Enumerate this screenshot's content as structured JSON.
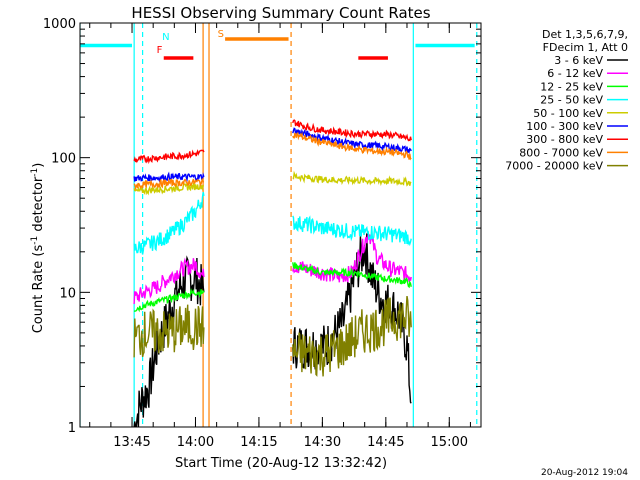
{
  "chart_data": {
    "type": "line",
    "title": "HESSI Observing Summary Count Rates",
    "xlabel": "Start Time (20-Aug-12 13:32:42)",
    "ylabel_main": "Count Rate (s",
    "ylabel_sup1": "-1",
    "ylabel_mid": " detector",
    "ylabel_sup2": "-1",
    "ylabel_end": ")",
    "y_scale": "log",
    "ylim": [
      1,
      1000
    ],
    "xlim_minutes": [
      13.5,
      36.5
    ],
    "xlim_minutes_note": "",
    "y_ticks": [
      {
        "value": 1,
        "label": "1"
      },
      {
        "value": 10,
        "label": "10"
      },
      {
        "value": 100,
        "label": "100"
      },
      {
        "value": 1000,
        "label": "1000"
      }
    ],
    "x_ticks": [
      {
        "time": "13:45",
        "label": "13:45"
      },
      {
        "time": "14:00",
        "label": "14:00"
      },
      {
        "time": "14:15",
        "label": "14:15"
      },
      {
        "time": "14:30",
        "label": "14:30"
      },
      {
        "time": "14:45",
        "label": "14:45"
      },
      {
        "time": "15:00",
        "label": "15:00"
      }
    ],
    "legend_header": [
      "Det 1,3,5,6,7,9,",
      "FDecim 1, Att 0"
    ],
    "legend_position": "right",
    "series": [
      {
        "name": "3 - 6 keV",
        "color": "#000000",
        "segments": [
          {
            "x": [
              "13:45.5",
              "13:47",
              "13:49",
              "13:51",
              "13:53",
              "13:55",
              "13:57",
              "14:00",
              "14:02"
            ],
            "y": [
              1,
              1.5,
              2,
              4,
              6,
              9,
              12,
              13,
              10
            ]
          },
          {
            "x": [
              "14:23",
              "14:27",
              "14:31",
              "14:35",
              "14:37",
              "14:38",
              "14:40",
              "14:42",
              "14:44",
              "14:46",
              "14:48",
              "14:50",
              "14:51"
            ],
            "y": [
              4,
              4,
              4,
              6,
              11,
              14,
              22,
              12,
              9,
              8,
              7,
              4,
              1.5
            ]
          }
        ]
      },
      {
        "name": "6 - 12 keV",
        "color": "#ff00ff",
        "segments": [
          {
            "x": [
              "13:45.5",
              "13:48",
              "13:51",
              "13:54",
              "13:57",
              "14:00",
              "14:02"
            ],
            "y": [
              9,
              10,
              11,
              13,
              15,
              16,
              13
            ]
          },
          {
            "x": [
              "14:23",
              "14:26",
              "14:30",
              "14:34",
              "14:37",
              "14:39",
              "14:41",
              "14:43",
              "14:46",
              "14:49",
              "14:51"
            ],
            "y": [
              16,
              15,
              14,
              13,
              14,
              20,
              28,
              18,
              15,
              14,
              13
            ]
          }
        ]
      },
      {
        "name": "12 - 25 keV",
        "color": "#00ff00",
        "segments": [
          {
            "x": [
              "13:45.5",
              "13:48",
              "13:51",
              "13:54",
              "13:57",
              "14:00",
              "14:02"
            ],
            "y": [
              7.5,
              8,
              8.5,
              9,
              9.5,
              10,
              10
            ]
          },
          {
            "x": [
              "14:23",
              "14:26",
              "14:30",
              "14:34",
              "14:38",
              "14:42",
              "14:46",
              "14:50",
              "14:51"
            ],
            "y": [
              16,
              15,
              14,
              14,
              14,
              13,
              12.5,
              12,
              11
            ]
          }
        ]
      },
      {
        "name": "25 - 50 keV",
        "color": "#00ffff",
        "segments": [
          {
            "x": [
              "13:45.5",
              "13:48",
              "13:51",
              "13:54",
              "13:57",
              "14:00",
              "14:02"
            ],
            "y": [
              21,
              22,
              24,
              27,
              32,
              40,
              52
            ]
          },
          {
            "x": [
              "14:23",
              "14:26",
              "14:30",
              "14:34",
              "14:38",
              "14:42",
              "14:46",
              "14:50",
              "14:51"
            ],
            "y": [
              33,
              32,
              30,
              29,
              28,
              28,
              27,
              26,
              25
            ]
          }
        ]
      },
      {
        "name": "50 - 100 keV",
        "color": "#cccc00",
        "segments": [
          {
            "x": [
              "13:45.5",
              "13:48",
              "13:51",
              "13:54",
              "13:57",
              "14:00",
              "14:02"
            ],
            "y": [
              56,
              57,
              58,
              59,
              60,
              61,
              62
            ]
          },
          {
            "x": [
              "14:23",
              "14:26",
              "14:30",
              "14:34",
              "14:38",
              "14:42",
              "14:46",
              "14:50",
              "14:51"
            ],
            "y": [
              73,
              71,
              69,
              68,
              68,
              67,
              67,
              66,
              65
            ]
          }
        ]
      },
      {
        "name": "100 - 300 keV",
        "color": "#0000ff",
        "segments": [
          {
            "x": [
              "13:45.5",
              "13:48",
              "13:51",
              "13:54",
              "13:57",
              "14:00",
              "14:02"
            ],
            "y": [
              70,
              71,
              71,
              72,
              72,
              72,
              72
            ]
          },
          {
            "x": [
              "14:23",
              "14:26",
              "14:30",
              "14:34",
              "14:38",
              "14:42",
              "14:46",
              "14:50",
              "14:51"
            ],
            "y": [
              160,
              150,
              140,
              132,
              125,
              123,
              120,
              115,
              112
            ]
          }
        ]
      },
      {
        "name": "300 - 800 keV",
        "color": "#ff0000",
        "segments": [
          {
            "x": [
              "13:45.5",
              "13:48",
              "13:51",
              "13:54",
              "13:57",
              "14:00",
              "14:02"
            ],
            "y": [
              96,
              98,
              100,
              102,
              104,
              107,
              110
            ]
          },
          {
            "x": [
              "14:23",
              "14:26",
              "14:30",
              "14:34",
              "14:38",
              "14:42",
              "14:46",
              "14:50",
              "14:51"
            ],
            "y": [
              185,
              170,
              160,
              155,
              150,
              150,
              148,
              140,
              135
            ]
          }
        ]
      },
      {
        "name": "800 - 7000 keV",
        "color": "#ff8000",
        "segments": [
          {
            "x": [
              "13:45.5",
              "13:48",
              "13:51",
              "13:54",
              "13:57",
              "14:00",
              "14:02"
            ],
            "y": [
              62,
              63,
              64,
              65,
              65,
              66,
              66
            ]
          },
          {
            "x": [
              "14:23",
              "14:26",
              "14:30",
              "14:34",
              "14:38",
              "14:42",
              "14:46",
              "14:50",
              "14:51"
            ],
            "y": [
              150,
              140,
              130,
              122,
              116,
              112,
              110,
              105,
              100
            ]
          }
        ]
      },
      {
        "name": "7000 - 20000 keV",
        "color": "#808000",
        "segments": [
          {
            "x": [
              "13:45.5",
              "13:48",
              "13:51",
              "13:54",
              "13:57",
              "14:00",
              "14:02"
            ],
            "y": [
              4.5,
              5,
              5,
              5,
              5.5,
              5.5,
              5.5
            ]
          },
          {
            "x": [
              "14:23",
              "14:27",
              "14:31",
              "14:35",
              "14:39",
              "14:43",
              "14:47",
              "14:50",
              "14:51"
            ],
            "y": [
              3.5,
              3.5,
              3.5,
              4,
              5,
              5.5,
              6.5,
              6.5,
              5.5
            ]
          }
        ]
      }
    ],
    "flag_markers": [
      {
        "label": "F",
        "color": "#ff0000",
        "time": "13:51.5",
        "y": 600
      },
      {
        "label": "N",
        "color": "#00ffff",
        "time": "13:53",
        "y": 750
      },
      {
        "label": "S",
        "color": "#ff8000",
        "time": "14:06",
        "y": 790
      }
    ],
    "flag_bars": [
      {
        "color": "#00ffff",
        "from": "13:32.7",
        "to": "13:45",
        "y": 680
      },
      {
        "color": "#00ffff",
        "from": "14:52",
        "to": "15:06",
        "y": 680
      },
      {
        "color": "#ff0000",
        "from": "13:52.5",
        "to": "13:59.5",
        "y": 550
      },
      {
        "color": "#ff0000",
        "from": "14:38.5",
        "to": "14:45.5",
        "y": 550
      },
      {
        "color": "#ff8000",
        "from": "14:07",
        "to": "14:22",
        "y": 760
      }
    ],
    "vertical_lines": [
      {
        "color": "#00ffff",
        "time": "13:32.7",
        "style": "solid"
      },
      {
        "color": "#00ffff",
        "time": "13:45.5",
        "style": "solid"
      },
      {
        "color": "#00ffff",
        "time": "13:47.5",
        "style": "dashed"
      },
      {
        "color": "#ff8000",
        "time": "14:01.8",
        "style": "solid"
      },
      {
        "color": "#ff8000",
        "time": "14:03.2",
        "style": "solid"
      },
      {
        "color": "#ff8000",
        "time": "14:22.6",
        "style": "dashed"
      },
      {
        "color": "#00ffff",
        "time": "14:51.5",
        "style": "solid"
      },
      {
        "color": "#00ffff",
        "time": "15:06.5",
        "style": "dashed"
      }
    ],
    "timestamp": "20-Aug-2012 19:04"
  }
}
